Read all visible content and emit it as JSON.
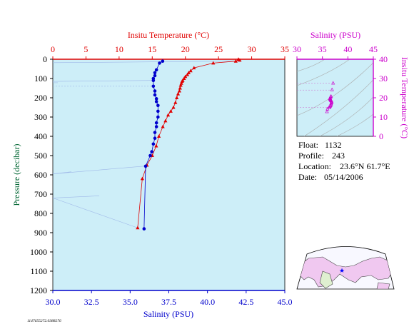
{
  "main_chart": {
    "top_axis_title": "Insitu Temperature (°C)",
    "bottom_axis_title": "Salinity (PSU)",
    "left_axis_title": "Pressure (decibar)",
    "temp_ticks": [
      "0",
      "5",
      "10",
      "15",
      "20",
      "25",
      "30",
      "35"
    ],
    "sal_ticks": [
      "30.0",
      "32.5",
      "35.0",
      "37.5",
      "40.0",
      "42.5",
      "45.0"
    ],
    "pres_ticks": [
      "0",
      "100",
      "200",
      "300",
      "400",
      "500",
      "600",
      "700",
      "800",
      "900",
      "1000",
      "1100",
      "1200"
    ],
    "colors": {
      "temperature": "#e00000",
      "salinity": "#0000cc",
      "plot_bg": "#cdeef8",
      "top_axis": "#e00000",
      "bottom_axis": "#0000cc"
    }
  },
  "ts_chart": {
    "top_axis_title": "Salinity (PSU)",
    "right_axis_title": "Insitu Temperature (°C)",
    "sal_ticks": [
      "30",
      "35",
      "40",
      "45"
    ],
    "temp_ticks": [
      "0",
      "10",
      "20",
      "30",
      "40"
    ],
    "color": "#cc00cc"
  },
  "info": {
    "float_label": "Float:",
    "float_value": "1132",
    "profile_label": "Profile:",
    "profile_value": "243",
    "location_label": "Location:",
    "location_value": "23.6°N 61.7°E",
    "date_label": "Date:",
    "date_value": "05/14/2006"
  },
  "footer_id": "1147655272.0388276",
  "map": {
    "float_marker": "star-icon",
    "marker_color": "#0000ff"
  },
  "chart_data": [
    {
      "type": "scatter",
      "xlabel": "Insitu Temperature (°C)",
      "ylabel": "Pressure (decibar)",
      "xlim": [
        0,
        35
      ],
      "ylim": [
        1200,
        0
      ],
      "series": [
        {
          "x": [
            28.0,
            28.2,
            27.6,
            24.2,
            21.3,
            20.8,
            20.5,
            20.3,
            20.0,
            19.8,
            19.6,
            19.5,
            19.4,
            19.3,
            19.2,
            19.1,
            18.9,
            18.7,
            18.5,
            18.2,
            17.8,
            17.4,
            17.0,
            16.6,
            16.0,
            15.6,
            15.0,
            14.2,
            13.5,
            12.8
          ],
          "y": [
            0,
            5,
            10,
            20,
            45,
            60,
            70,
            80,
            90,
            100,
            110,
            115,
            125,
            135,
            150,
            165,
            180,
            200,
            225,
            250,
            270,
            290,
            320,
            350,
            400,
            450,
            500,
            550,
            620,
            875
          ]
        }
      ]
    },
    {
      "type": "scatter",
      "xlabel": "Salinity (PSU)",
      "ylabel": "Pressure (decibar)",
      "xlim": [
        30,
        45
      ],
      "ylim": [
        1200,
        0
      ],
      "series": [
        {
          "x": [
            37.1,
            36.9,
            36.7,
            36.6,
            36.6,
            36.5,
            36.5,
            36.5,
            36.6,
            36.6,
            36.7,
            36.7,
            36.8,
            36.8,
            36.8,
            36.7,
            36.7,
            36.6,
            36.6,
            36.5,
            36.4,
            36.3,
            36.0,
            35.9
          ],
          "y": [
            10,
            20,
            55,
            70,
            85,
            100,
            110,
            140,
            165,
            185,
            205,
            220,
            240,
            270,
            300,
            330,
            350,
            380,
            410,
            440,
            480,
            500,
            555,
            880
          ]
        }
      ]
    }
  ]
}
